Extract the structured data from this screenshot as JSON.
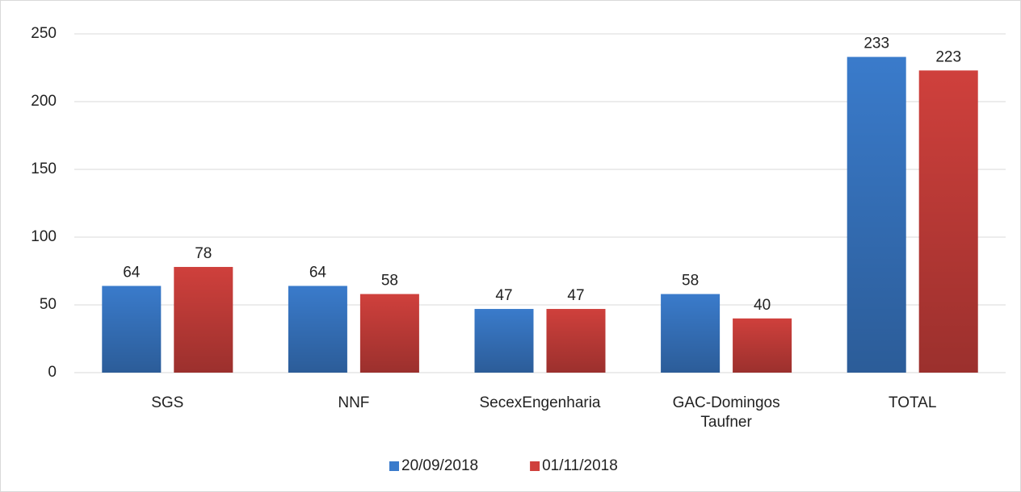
{
  "chart_data": {
    "type": "bar",
    "categories": [
      "SGS",
      "NNF",
      "SecexEngenharia",
      "GAC-Domingos Taufner",
      "TOTAL"
    ],
    "series": [
      {
        "name": "20/09/2018",
        "color": "#3a7bcb",
        "values": [
          64,
          64,
          47,
          58,
          233
        ]
      },
      {
        "name": "01/11/2018",
        "color": "#cf403c",
        "values": [
          78,
          58,
          47,
          40,
          223
        ]
      }
    ],
    "ylim": [
      0,
      250
    ],
    "yticks": [
      0,
      50,
      100,
      150,
      200,
      250
    ],
    "grid": true,
    "legend": "bottom"
  }
}
